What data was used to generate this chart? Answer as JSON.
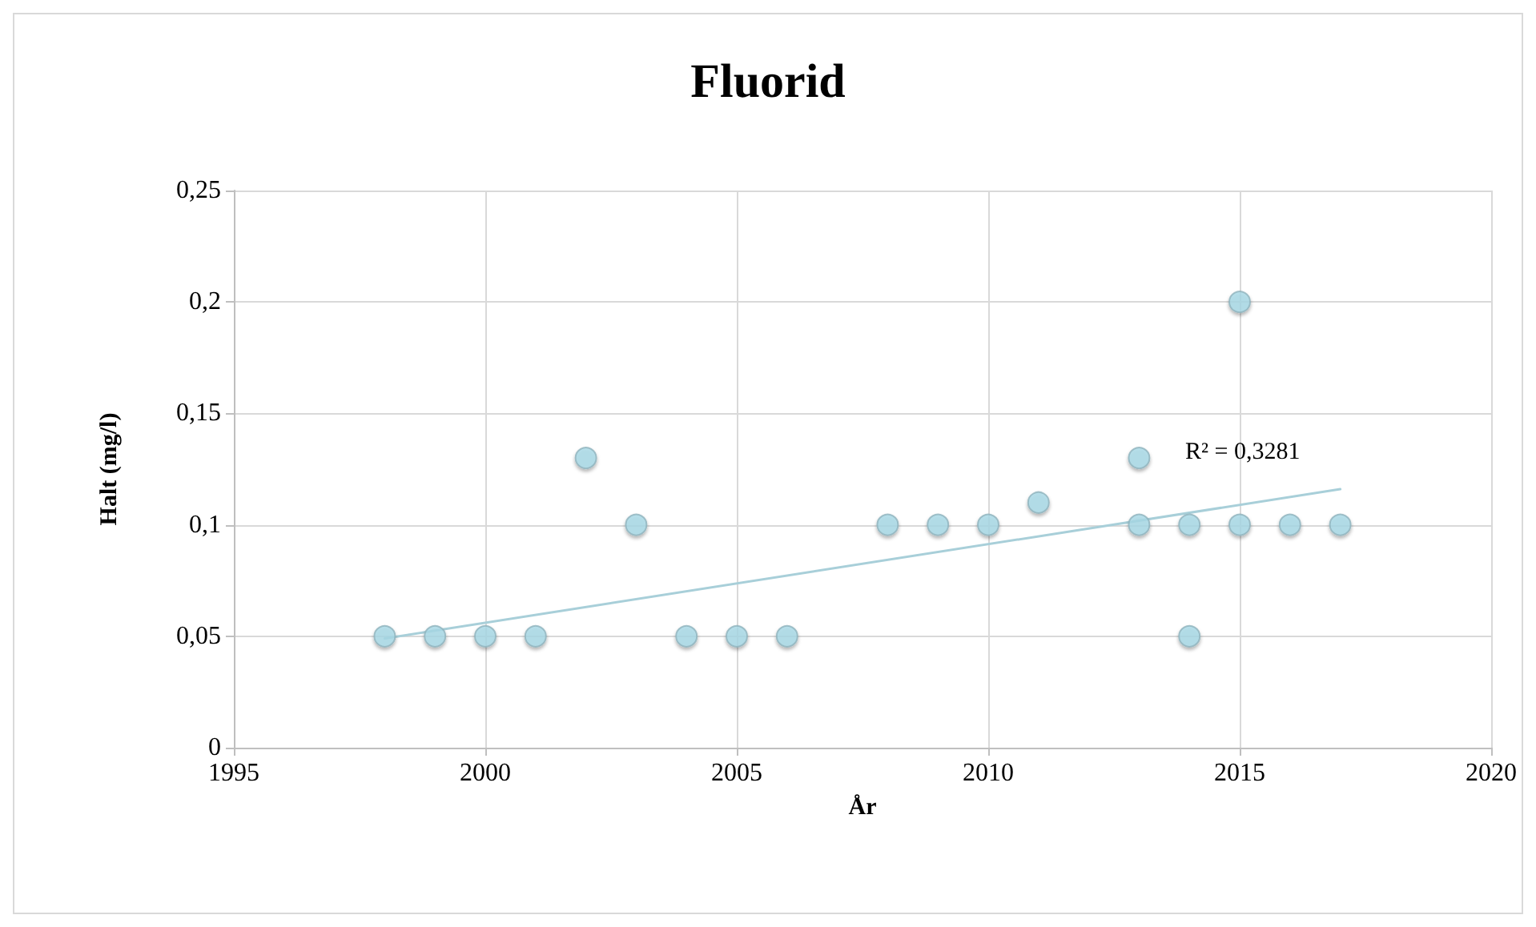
{
  "chart_data": {
    "type": "scatter",
    "title": "Fluorid",
    "xlabel": "År",
    "ylabel": "Halt (mg/l)",
    "x": [
      1998,
      1999,
      2000,
      2001,
      2002,
      2003,
      2004,
      2005,
      2006,
      2008,
      2009,
      2010,
      2011,
      2013,
      2013,
      2014,
      2014,
      2015,
      2015,
      2016,
      2017
    ],
    "series": [
      {
        "color": "#a9dbe8",
        "marker": "circle",
        "values": [
          0.05,
          0.05,
          0.05,
          0.05,
          0.13,
          0.1,
          0.05,
          0.05,
          0.05,
          0.1,
          0.1,
          0.1,
          0.11,
          0.13,
          0.1,
          0.1,
          0.05,
          0.2,
          0.1,
          0.1,
          0.1
        ]
      },
      {
        "type": "line",
        "marker": "none",
        "color": "#a8cfd9",
        "x": [
          1998,
          2017
        ],
        "values": [
          0.049,
          0.116
        ]
      }
    ],
    "xlim": [
      1995,
      2020
    ],
    "xticks": [
      1995,
      2000,
      2005,
      2010,
      2015,
      2020
    ],
    "ylim": [
      0,
      0.25
    ],
    "yticks": [
      0,
      {
        "value": 0.05,
        "label": "0,05"
      },
      {
        "value": 0.1,
        "label": "0,1"
      },
      {
        "value": 0.15,
        "label": "0,15"
      },
      {
        "value": 0.2,
        "label": "0,2"
      },
      {
        "value": 0.25,
        "label": "0,25"
      }
    ],
    "annotations": [
      "R² = 0,3281"
    ],
    "grid": true,
    "line_style": "solid"
  }
}
